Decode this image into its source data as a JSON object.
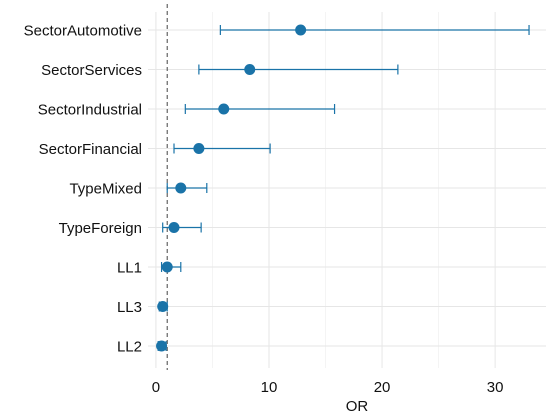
{
  "chart_data": {
    "type": "forest",
    "xlabel": "OR",
    "ylabel": "",
    "title": "",
    "xlim": [
      -0.7,
      34.5
    ],
    "xticks": [
      0,
      10,
      20,
      30
    ],
    "reference_line": 1,
    "grid": true,
    "color": "#1a73a8",
    "rows": [
      {
        "label": "SectorAutomotive",
        "or": 12.8,
        "lower": 5.7,
        "upper": 33.0
      },
      {
        "label": "SectorServices",
        "or": 8.3,
        "lower": 3.8,
        "upper": 21.4
      },
      {
        "label": "SectorIndustrial",
        "or": 6.0,
        "lower": 2.6,
        "upper": 15.8
      },
      {
        "label": "SectorFinancial",
        "or": 3.8,
        "lower": 1.6,
        "upper": 10.1
      },
      {
        "label": "TypeMixed",
        "or": 2.2,
        "lower": 1.0,
        "upper": 4.5
      },
      {
        "label": "TypeForeign",
        "or": 1.6,
        "lower": 0.6,
        "upper": 4.0
      },
      {
        "label": "LL1",
        "or": 1.0,
        "lower": 0.5,
        "upper": 2.2
      },
      {
        "label": "LL3",
        "or": 0.6,
        "lower": 0.3,
        "upper": 1.0
      },
      {
        "label": "LL2",
        "or": 0.5,
        "lower": 0.2,
        "upper": 0.9
      }
    ]
  }
}
